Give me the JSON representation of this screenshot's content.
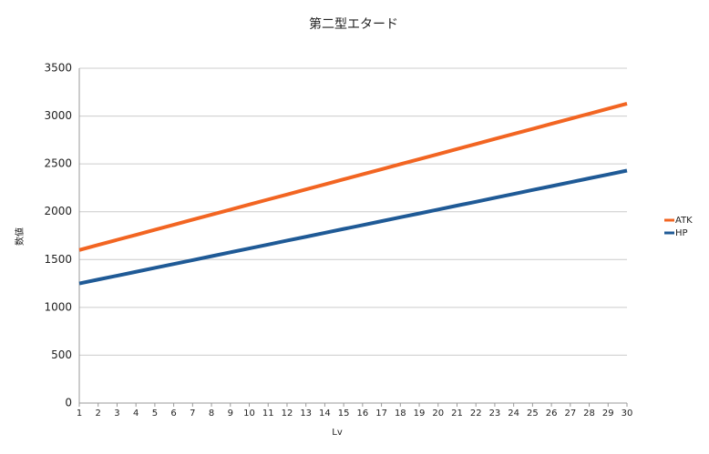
{
  "chart_data": {
    "type": "line",
    "title": "第二型エタード",
    "x_label": "Lv",
    "y_label": "数値",
    "x": [
      1,
      2,
      3,
      4,
      5,
      6,
      7,
      8,
      9,
      10,
      11,
      12,
      13,
      14,
      15,
      16,
      17,
      18,
      19,
      20,
      21,
      22,
      23,
      24,
      25,
      26,
      27,
      28,
      29,
      30
    ],
    "xlim": [
      1,
      30
    ],
    "xticks": [
      1,
      2,
      3,
      4,
      5,
      6,
      7,
      8,
      9,
      10,
      11,
      12,
      13,
      14,
      15,
      16,
      17,
      18,
      19,
      20,
      21,
      22,
      23,
      24,
      25,
      26,
      27,
      28,
      29,
      30
    ],
    "ylim": [
      0,
      3500
    ],
    "yticks": [
      0,
      500,
      1000,
      1500,
      2000,
      2500,
      3000,
      3500
    ],
    "grid": true,
    "legend": "right",
    "series": [
      {
        "name": "ATK",
        "color": "#f26522",
        "values": [
          1600,
          1653,
          1706,
          1758,
          1811,
          1864,
          1917,
          1969,
          2022,
          2075,
          2128,
          2180,
          2233,
          2286,
          2339,
          2391,
          2444,
          2497,
          2550,
          2602,
          2655,
          2708,
          2761,
          2813,
          2866,
          2919,
          2972,
          3024,
          3077,
          3130
        ]
      },
      {
        "name": "HP",
        "color": "#1f5a96",
        "values": [
          1250,
          1291,
          1331,
          1372,
          1413,
          1453,
          1494,
          1535,
          1576,
          1616,
          1657,
          1698,
          1738,
          1779,
          1820,
          1860,
          1901,
          1942,
          1982,
          2023,
          2064,
          2104,
          2145,
          2186,
          2227,
          2267,
          2308,
          2349,
          2389,
          2430
        ]
      }
    ]
  }
}
